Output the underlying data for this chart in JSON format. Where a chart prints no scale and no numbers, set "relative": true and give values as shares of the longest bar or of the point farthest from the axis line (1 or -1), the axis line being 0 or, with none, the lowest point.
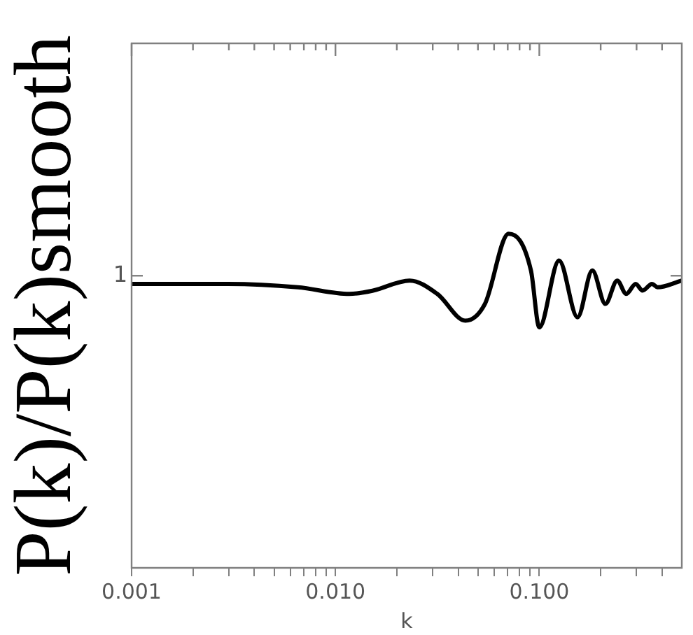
{
  "chart_data": {
    "type": "line",
    "xlabel": "k",
    "ylabel": "P(k)/P(k)smooth",
    "log": "x",
    "relative": true,
    "color": "#000000",
    "marker": "none",
    "line_style": "solid",
    "legend": false,
    "grid": false,
    "x": [
      0.001,
      0.00297,
      0.00653,
      0.0117,
      0.0153,
      0.0231,
      0.0316,
      0.0434,
      0.0541,
      0.0707,
      0.091,
      0.1,
      0.125,
      0.154,
      0.182,
      0.211,
      0.241,
      0.267,
      0.297,
      0.321,
      0.357,
      0.38,
      0.5
    ],
    "values": [
      0.85,
      0.85,
      0.84,
      0.82,
      0.83,
      0.86,
      0.82,
      0.74,
      0.79,
      1.0,
      0.89,
      0.72,
      0.92,
      0.75,
      0.89,
      0.79,
      0.86,
      0.82,
      0.85,
      0.83,
      0.85,
      0.84,
      0.86
    ],
    "xlim": [
      0.001,
      0.5
    ],
    "xticks": [
      {
        "value": 0.001,
        "label": "0.001"
      },
      {
        "value": 0.002,
        "label": null
      },
      {
        "value": 0.003,
        "label": null
      },
      {
        "value": 0.004,
        "label": null
      },
      {
        "value": 0.005,
        "label": null
      },
      {
        "value": 0.006,
        "label": null
      },
      {
        "value": 0.007,
        "label": null
      },
      {
        "value": 0.008,
        "label": null
      },
      {
        "value": 0.009,
        "label": null
      },
      {
        "value": 0.01,
        "label": "0.010"
      },
      {
        "value": 0.02,
        "label": null
      },
      {
        "value": 0.03,
        "label": null
      },
      {
        "value": 0.04,
        "label": null
      },
      {
        "value": 0.05,
        "label": null
      },
      {
        "value": 0.06,
        "label": null
      },
      {
        "value": 0.07,
        "label": null
      },
      {
        "value": 0.08,
        "label": null
      },
      {
        "value": 0.09,
        "label": null
      },
      {
        "value": 0.1,
        "label": "0.100"
      },
      {
        "value": 0.2,
        "label": null
      },
      {
        "value": 0.3,
        "label": null
      },
      {
        "value": 0.4,
        "label": null
      }
    ],
    "annotations": [
      "1"
    ]
  }
}
